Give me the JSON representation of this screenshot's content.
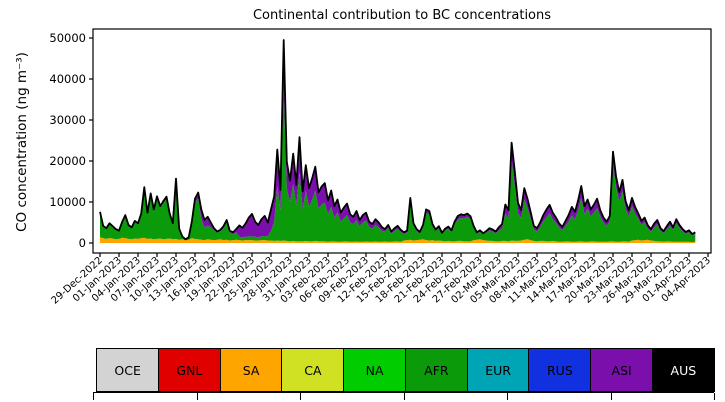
{
  "figure": {
    "title": "Continental contribution to BC concentrations",
    "ylabel": "CO concentration (ng m⁻³)"
  },
  "chart_data": {
    "type": "area",
    "stacked": true,
    "title": "Continental contribution to BC concentrations",
    "ylabel": "CO concentration (ng m⁻³)",
    "xlabel": "",
    "grid": false,
    "ylim": [
      0,
      50000
    ],
    "yticks": [
      0,
      10000,
      20000,
      30000,
      40000,
      50000
    ],
    "ytick_labels": [
      "0",
      "10000",
      "20000",
      "30000",
      "40000",
      "50000"
    ],
    "xtick_labels": [
      "29-Dec-2022",
      "01-Jan-2023",
      "04-Jan-2023",
      "07-Jan-2023",
      "10-Jan-2023",
      "13-Jan-2023",
      "16-Jan-2023",
      "19-Jan-2023",
      "22-Jan-2023",
      "25-Jan-2023",
      "28-Jan-2023",
      "31-Jan-2023",
      "03-Feb-2023",
      "06-Feb-2023",
      "09-Feb-2023",
      "12-Feb-2023",
      "15-Feb-2023",
      "18-Feb-2023",
      "21-Feb-2023",
      "24-Feb-2023",
      "27-Feb-2023",
      "02-Mar-2023",
      "05-Mar-2023",
      "08-Mar-2023",
      "11-Mar-2023",
      "14-Mar-2023",
      "17-Mar-2023",
      "20-Mar-2023",
      "23-Mar-2023",
      "26-Mar-2023",
      "29-Mar-2023",
      "01-Apr-2023",
      "04-Apr-2023"
    ],
    "time_base": {
      "start": "29-Dec-2022",
      "points_per_day": 2,
      "n_points": 189
    },
    "stack_order": [
      "OCE",
      "GNL",
      "SA",
      "CA",
      "NA",
      "AFR",
      "EUR",
      "RUS",
      "ASI",
      "AUS"
    ],
    "series": [
      {
        "name": "OCE",
        "color": "#d3d3d3",
        "values": [],
        "note": "≈0, not visibly distinguishable"
      },
      {
        "name": "GNL",
        "color": "#e00000",
        "values": [],
        "note": "≈0, not visibly distinguishable"
      },
      {
        "name": "SA",
        "color": "#ffa500",
        "values": [
          1400,
          1200,
          1000,
          1200,
          1100,
          900,
          1000,
          1300,
          1200,
          1000,
          900,
          1100,
          1000,
          1200,
          1300,
          1000,
          1100,
          900,
          1000,
          1100,
          900,
          1000,
          1100,
          900,
          1000,
          800,
          900,
          700,
          800,
          1200,
          1000,
          900,
          800,
          700,
          900,
          800,
          700,
          800,
          900,
          700,
          800,
          600,
          700,
          800,
          700,
          600,
          700,
          700,
          700,
          600,
          600,
          700,
          700,
          600,
          600,
          500,
          600,
          500,
          600,
          500,
          400,
          500,
          400,
          400,
          400,
          500,
          400,
          400,
          500,
          400,
          400,
          400,
          300,
          400,
          400,
          300,
          300,
          400,
          400,
          300,
          300,
          400,
          300,
          300,
          400,
          300,
          300,
          400,
          300,
          300,
          400,
          300,
          300,
          400,
          400,
          300,
          600,
          700,
          800,
          600,
          700,
          800,
          900,
          700,
          600,
          700,
          500,
          600,
          500,
          400,
          500,
          400,
          400,
          500,
          500,
          400,
          400,
          400,
          700,
          800,
          900,
          700,
          600,
          500,
          500,
          400,
          400,
          500,
          500,
          400,
          600,
          500,
          500,
          600,
          800,
          900,
          700,
          500,
          400,
          500,
          500,
          400,
          400,
          500,
          400,
          300,
          300,
          400,
          400,
          300,
          300,
          400,
          400,
          300,
          300,
          400,
          400,
          300,
          300,
          300,
          300,
          400,
          400,
          300,
          300,
          400,
          400,
          300,
          600,
          700,
          800,
          600,
          700,
          800,
          600,
          500,
          400,
          400,
          300,
          400,
          400,
          300,
          300,
          300,
          300,
          300,
          300,
          200,
          300
        ]
      },
      {
        "name": "CA",
        "color": "#d0e023",
        "values": [],
        "note": "≈0, not visibly distinguishable"
      },
      {
        "name": "NA",
        "color": "#00cc00",
        "values": [],
        "note": "≈0, not visibly distinguishable"
      },
      {
        "name": "AFR",
        "color": "#0a9a0a",
        "derived_as": "total − SA − ASI (dominant green bulk of the stack)"
      },
      {
        "name": "EUR",
        "color": "#00a5b5",
        "values": [],
        "note": "≈0, not visibly distinguishable"
      },
      {
        "name": "RUS",
        "color": "#1130e0",
        "values": [],
        "note": "≈0, not visibly distinguishable"
      },
      {
        "name": "ASI",
        "color": "#7a0fab",
        "values": [
          300,
          200,
          200,
          300,
          250,
          200,
          200,
          300,
          400,
          250,
          250,
          350,
          300,
          450,
          700,
          400,
          600,
          450,
          550,
          450,
          500,
          600,
          400,
          300,
          700,
          250,
          150,
          100,
          150,
          300,
          800,
          1500,
          2400,
          1800,
          2200,
          1200,
          400,
          300,
          350,
          500,
          700,
          400,
          500,
          800,
          2800,
          2300,
          3300,
          4600,
          5500,
          3700,
          3000,
          4200,
          4900,
          3400,
          5200,
          6200,
          9000,
          5000,
          12000,
          6500,
          5200,
          7400,
          5000,
          8600,
          4400,
          6200,
          4600,
          5200,
          5800,
          4000,
          4400,
          4800,
          3400,
          4000,
          2800,
          3200,
          2200,
          2600,
          2800,
          2000,
          1800,
          2200,
          1500,
          1800,
          1900,
          1300,
          1100,
          1400,
          1200,
          900,
          600,
          700,
          500,
          600,
          700,
          500,
          400,
          500,
          900,
          600,
          500,
          400,
          600,
          900,
          800,
          500,
          400,
          500,
          300,
          400,
          500,
          400,
          700,
          900,
          900,
          800,
          800,
          700,
          500,
          300,
          400,
          300,
          300,
          500,
          500,
          400,
          800,
          1100,
          2200,
          2000,
          4500,
          3500,
          2400,
          2000,
          2800,
          2300,
          1600,
          900,
          800,
          1100,
          1500,
          1900,
          2000,
          1600,
          1300,
          1000,
          800,
          1200,
          1600,
          2100,
          1800,
          2500,
          2800,
          2000,
          2200,
          1700,
          1900,
          2300,
          1600,
          1300,
          1000,
          1400,
          3000,
          2600,
          2200,
          2800,
          1900,
          1500,
          2000,
          1600,
          1300,
          1000,
          1100,
          800,
          600,
          900,
          1000,
          600,
          500,
          700,
          900,
          600,
          1000,
          700,
          500,
          400,
          500,
          300,
          400
        ]
      },
      {
        "name": "AUS",
        "color": "#000000",
        "values": [],
        "note": "≈0, not visibly distinguishable"
      }
    ],
    "total_line": {
      "name": "total",
      "color": "#000000",
      "values": [
        7600,
        4200,
        3600,
        4800,
        4100,
        3400,
        3000,
        5200,
        6800,
        4400,
        3800,
        5400,
        4800,
        7200,
        13600,
        7400,
        12100,
        8200,
        11400,
        9000,
        10200,
        11300,
        7200,
        4800,
        15700,
        3500,
        1600,
        900,
        1400,
        5200,
        10800,
        12300,
        8200,
        5600,
        6400,
        5000,
        3600,
        2800,
        3200,
        4100,
        5600,
        3000,
        2600,
        3400,
        4300,
        3700,
        4800,
        6200,
        7100,
        5200,
        4400,
        5800,
        6600,
        5000,
        8200,
        11400,
        22800,
        13000,
        49500,
        19800,
        15200,
        21800,
        14200,
        25800,
        12600,
        19000,
        13400,
        15800,
        18600,
        12400,
        13800,
        14600,
        10400,
        12800,
        9000,
        10600,
        7400,
        8600,
        9600,
        7000,
        6400,
        7800,
        5600,
        6800,
        7400,
        5200,
        4600,
        5800,
        5000,
        3900,
        3400,
        4400,
        2800,
        3600,
        4200,
        3200,
        2600,
        3000,
        11000,
        4800,
        3400,
        2700,
        4400,
        8200,
        7800,
        4600,
        3300,
        4100,
        2500,
        3500,
        4000,
        3100,
        5200,
        6600,
        7000,
        6800,
        7200,
        6500,
        4200,
        2600,
        3100,
        2400,
        2900,
        3600,
        3300,
        2800,
        3900,
        4600,
        9400,
        8000,
        24500,
        17500,
        9800,
        8000,
        13400,
        10800,
        7600,
        4200,
        3600,
        5000,
        6800,
        8200,
        9300,
        7400,
        6200,
        4800,
        3900,
        5400,
        6800,
        8800,
        7600,
        10400,
        13900,
        9000,
        10600,
        8200,
        9400,
        10800,
        8000,
        6200,
        5200,
        6600,
        22300,
        16200,
        12400,
        15400,
        10200,
        8000,
        11000,
        8800,
        7200,
        5400,
        6200,
        4300,
        3400,
        4700,
        5600,
        3600,
        2900,
        4100,
        5200,
        3800,
        5800,
        4400,
        3400,
        2700,
        3100,
        2200,
        2600
      ]
    }
  },
  "legend": {
    "entries": [
      {
        "label": "OCE",
        "color": "#d3d3d3",
        "text_color": "#000000"
      },
      {
        "label": "GNL",
        "color": "#e00000",
        "text_color": "#000000"
      },
      {
        "label": "SA",
        "color": "#ffa500",
        "text_color": "#000000"
      },
      {
        "label": "CA",
        "color": "#d0e023",
        "text_color": "#000000"
      },
      {
        "label": "NA",
        "color": "#00cc00",
        "text_color": "#000000"
      },
      {
        "label": "AFR",
        "color": "#0a9a0a",
        "text_color": "#000000"
      },
      {
        "label": "EUR",
        "color": "#00a5b5",
        "text_color": "#000000"
      },
      {
        "label": "RUS",
        "color": "#1130e0",
        "text_color": "#000000"
      },
      {
        "label": "ASI",
        "color": "#7a0fab",
        "text_color": "#000000"
      },
      {
        "label": "AUS",
        "color": "#000000",
        "text_color": "#ffffff"
      }
    ]
  }
}
